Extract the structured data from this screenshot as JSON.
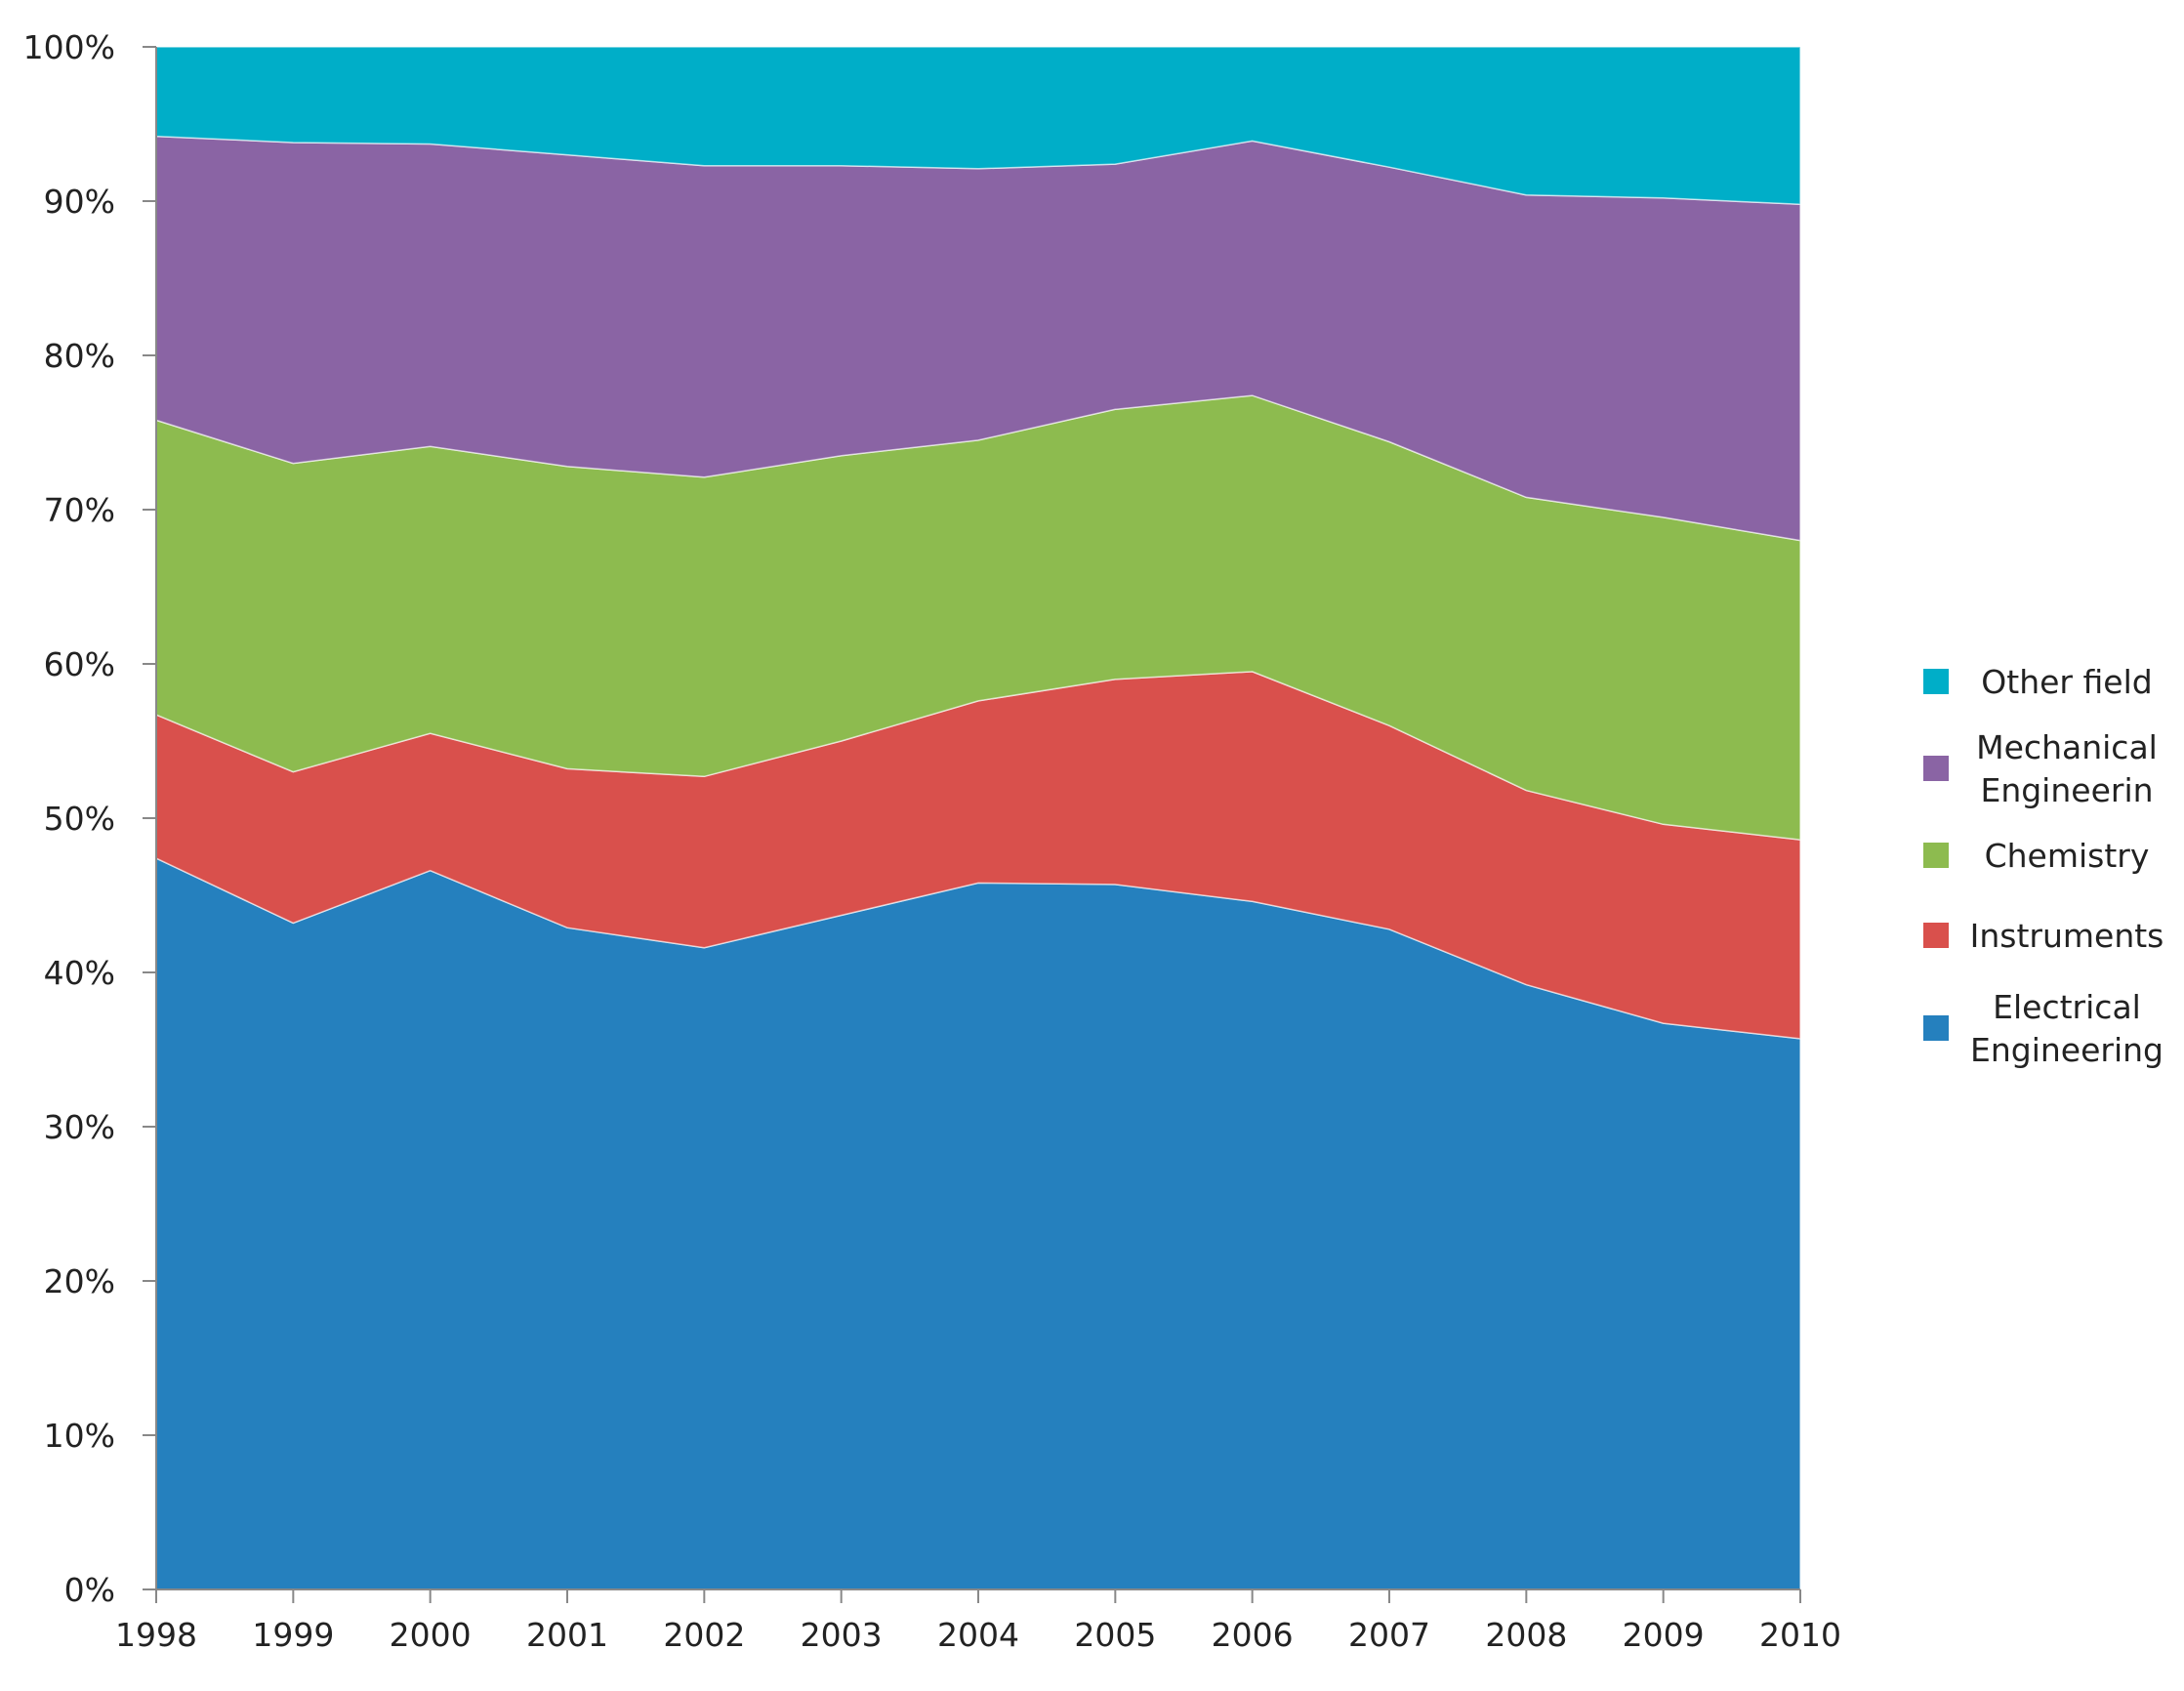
{
  "chart_data": {
    "type": "area",
    "stacked": "percent",
    "title": "",
    "xlabel": "",
    "ylabel": "",
    "ylim": [
      0,
      100
    ],
    "y_ticks": [
      "0%",
      "10%",
      "20%",
      "30%",
      "40%",
      "50%",
      "60%",
      "70%",
      "80%",
      "90%",
      "100%"
    ],
    "categories": [
      "1998",
      "1999",
      "2000",
      "2001",
      "2002",
      "2003",
      "2004",
      "2005",
      "2006",
      "2007",
      "2008",
      "2009",
      "2010"
    ],
    "series": [
      {
        "name": "Electrical Engineering",
        "legend_lines": [
          "Electrical",
          "Engineering"
        ],
        "color": "#2580BE",
        "values": [
          47.4,
          43.2,
          46.6,
          42.9,
          41.6,
          43.7,
          45.8,
          45.7,
          44.6,
          42.8,
          39.2,
          36.7,
          35.7
        ]
      },
      {
        "name": "Instruments",
        "legend_lines": [
          "Instruments"
        ],
        "color": "#D9504C",
        "values": [
          9.3,
          9.8,
          8.9,
          10.3,
          11.1,
          11.3,
          11.8,
          13.3,
          14.9,
          13.2,
          12.6,
          12.9,
          12.9
        ]
      },
      {
        "name": "Chemistry",
        "legend_lines": [
          "Chemistry"
        ],
        "color": "#8DBB4F",
        "values": [
          19.1,
          20.0,
          18.6,
          19.6,
          19.4,
          18.5,
          16.9,
          17.5,
          17.9,
          18.4,
          19.0,
          19.9,
          19.4
        ]
      },
      {
        "name": "Mechanical Engineerin",
        "legend_lines": [
          "Mechanical",
          "Engineerin"
        ],
        "color": "#8A64A4",
        "values": [
          18.4,
          20.8,
          19.6,
          20.2,
          20.2,
          18.8,
          17.6,
          15.9,
          16.5,
          17.8,
          19.6,
          20.7,
          21.8
        ]
      },
      {
        "name": "Other field",
        "legend_lines": [
          "Other field"
        ],
        "color": "#00AEC8",
        "values": [
          5.8,
          6.2,
          6.3,
          7.0,
          7.7,
          7.7,
          7.9,
          7.6,
          6.1,
          7.8,
          9.6,
          9.8,
          10.2
        ]
      }
    ],
    "legend_position": "right",
    "legend_order": [
      "Other field",
      "Mechanical Engineerin",
      "Chemistry",
      "Instruments",
      "Electrical Engineering"
    ]
  }
}
